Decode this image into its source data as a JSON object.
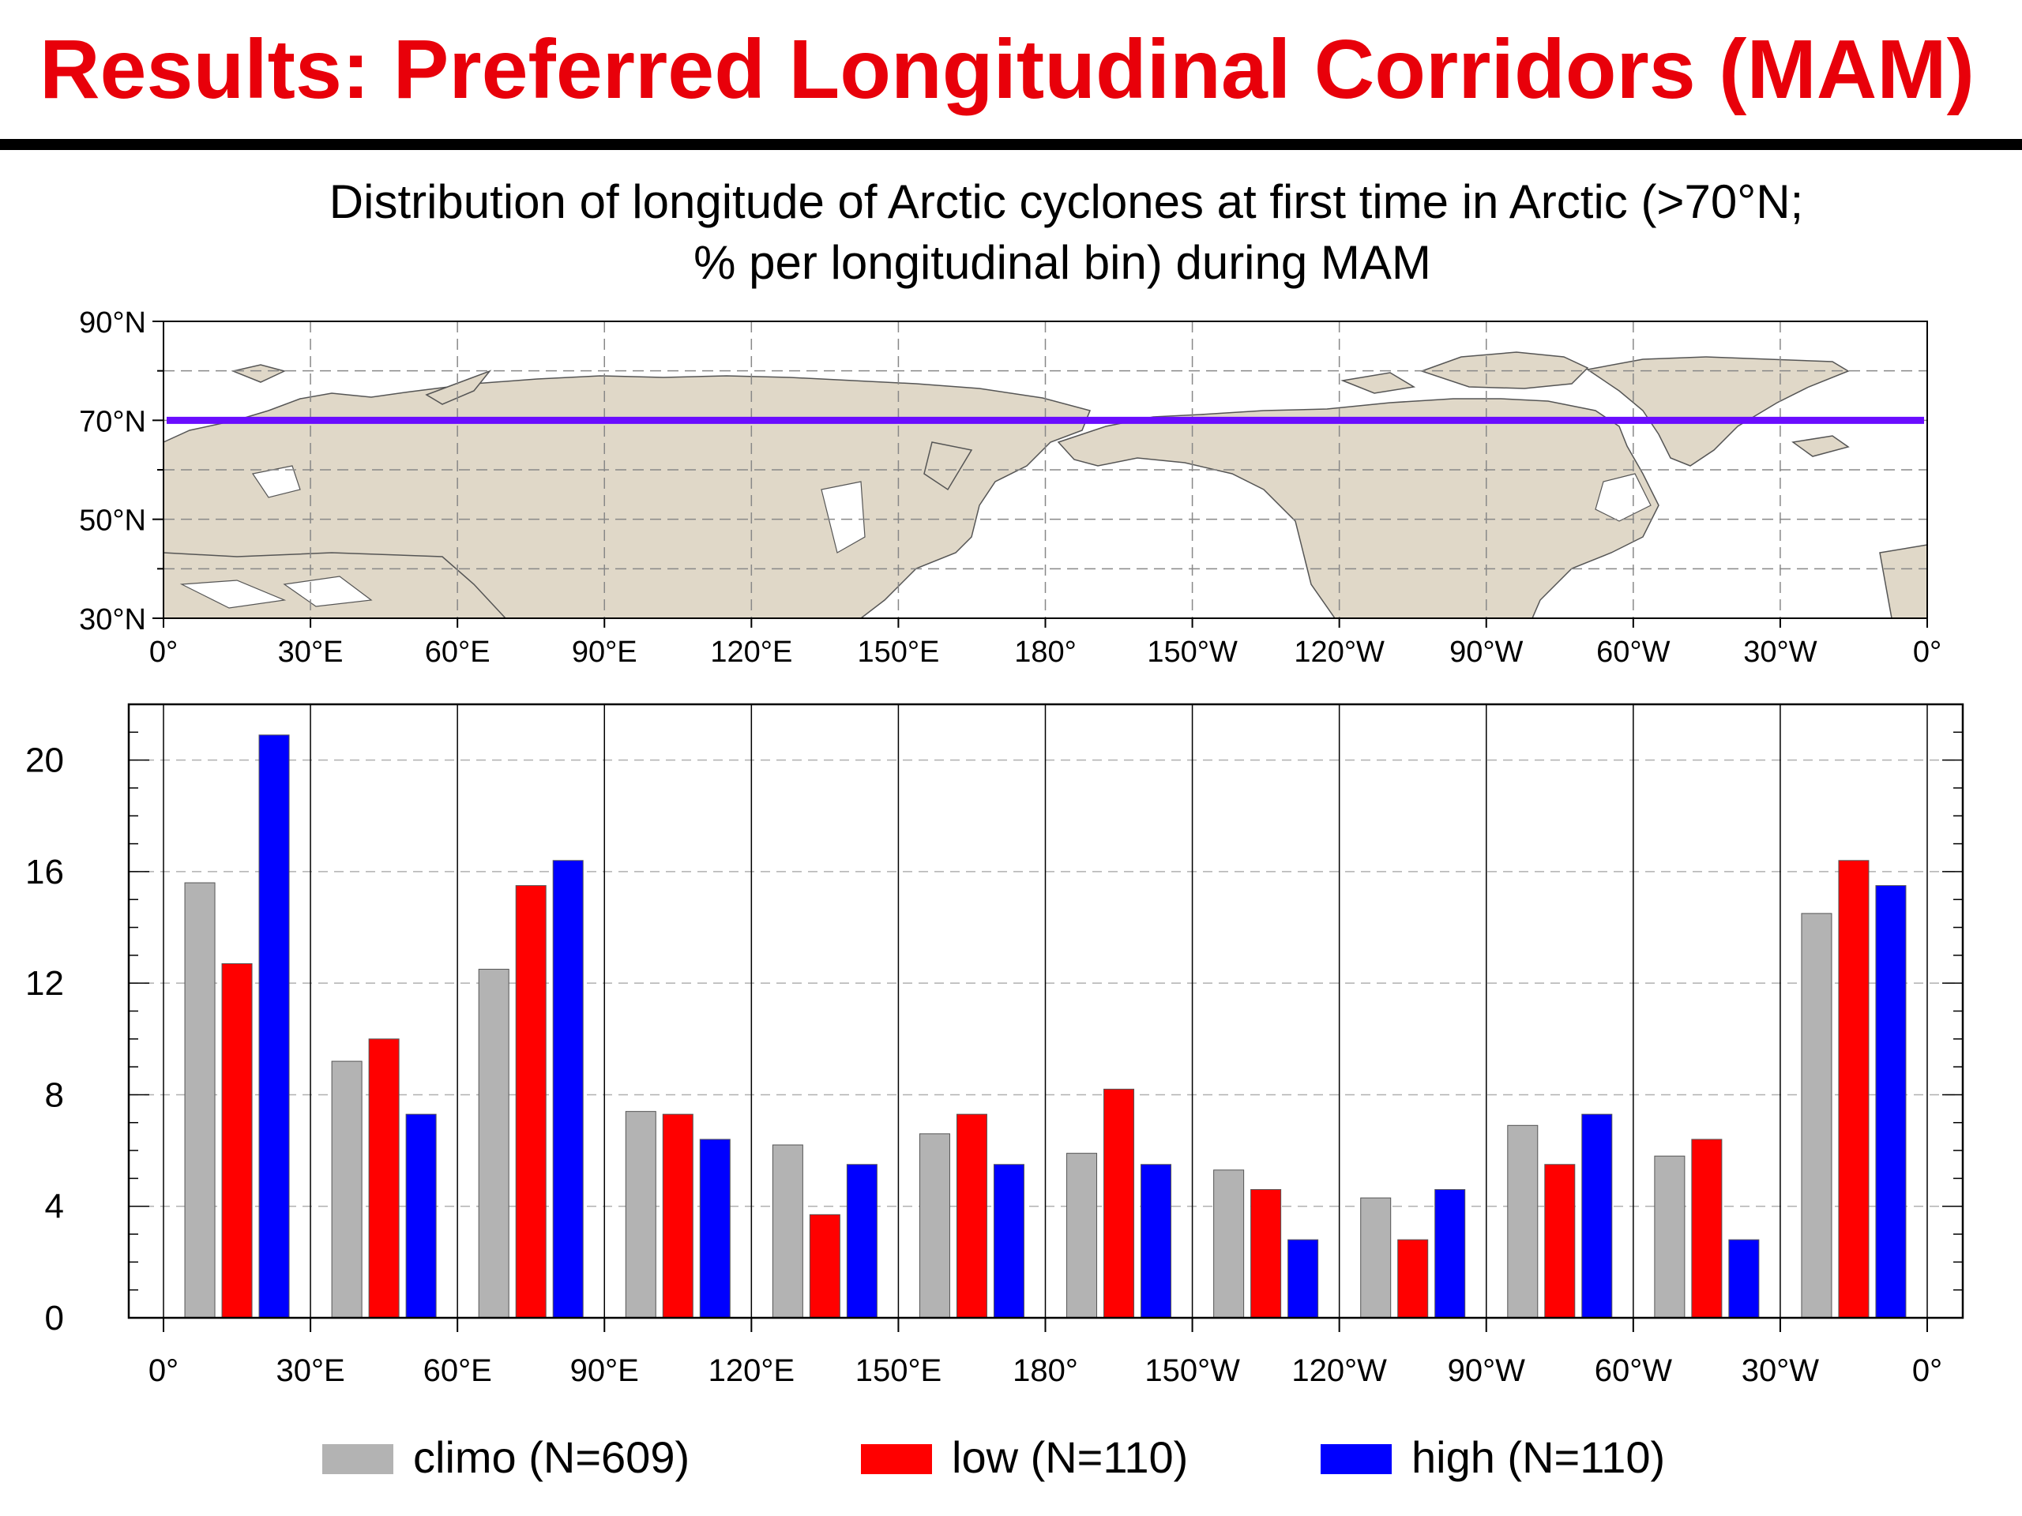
{
  "slide_title": "Results: Preferred Longitudinal Corridors (MAM)",
  "chart_data": {
    "type": "bar",
    "title": "Distribution of longitude of Arctic cyclones at first time in Arctic (>70°N;",
    "subtitle": "% per longitudinal bin) during MAM",
    "xlabel": "",
    "ylabel": "",
    "x_tick_labels": [
      "0°",
      "30°E",
      "60°E",
      "90°E",
      "120°E",
      "150°E",
      "180°",
      "150°W",
      "120°W",
      "90°W",
      "60°W",
      "30°W",
      "0°"
    ],
    "categories": [
      "0°–30°E",
      "30°E–60°E",
      "60°E–90°E",
      "90°E–120°E",
      "120°E–150°E",
      "150°E–180°",
      "180°–150°W",
      "150°W–120°W",
      "120°W–90°W",
      "90°W–60°W",
      "60°W–30°W",
      "30°W–0°"
    ],
    "series": [
      {
        "name": "climo (N=609)",
        "color": "#b3b3b3",
        "values": [
          15.6,
          9.2,
          12.5,
          7.4,
          6.2,
          6.6,
          5.9,
          5.3,
          4.3,
          6.9,
          5.8,
          14.5
        ]
      },
      {
        "name": "low (N=110)",
        "color": "#ff0000",
        "values": [
          12.7,
          10.0,
          15.5,
          7.3,
          3.7,
          7.3,
          8.2,
          4.6,
          2.8,
          5.5,
          6.4,
          16.4
        ]
      },
      {
        "name": "high (N=110)",
        "color": "#0000ff",
        "values": [
          20.9,
          7.3,
          16.4,
          6.4,
          5.5,
          5.5,
          5.5,
          2.8,
          4.6,
          7.3,
          2.8,
          15.5
        ]
      }
    ],
    "ylim": [
      0,
      22
    ],
    "y_ticks": [
      "0",
      "4",
      "8",
      "12",
      "16",
      "20"
    ],
    "grid": true,
    "legend_position": "bottom",
    "map": {
      "lat_tick_labels": [
        "90°N",
        "70°N",
        "50°N",
        "30°N"
      ],
      "lat_range": [
        30,
        90
      ],
      "marked_latitude": 70,
      "marked_latitude_color": "#6a0dff",
      "land_color": "#e0d8c8"
    }
  }
}
